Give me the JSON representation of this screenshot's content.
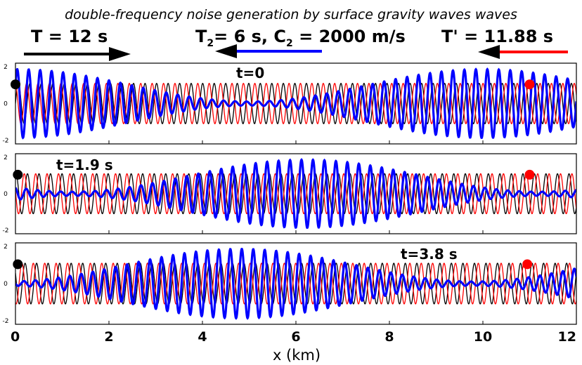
{
  "title": "double-frequency noise generation by surface gravity waves waves",
  "header": {
    "wave1_label": "T = 12 s",
    "wave2_label_T": "T",
    "wave2_label_T_sub": "2",
    "wave2_label_mid": "= 6 s, C",
    "wave2_label_C_sub": "2",
    "wave2_label_end": " = 2000 m/s",
    "wave3_label": "T' = 11.88 s"
  },
  "colors": {
    "wave1": "#000000",
    "wave2": "#0000ff",
    "wave3": "#ff0000",
    "background": "#ffffff"
  },
  "chart_data": {
    "type": "line",
    "xlabel": "x (km)",
    "xlim": [
      0,
      12
    ],
    "x_ticks": [
      "0",
      "2",
      "4",
      "6",
      "8",
      "10",
      "12"
    ],
    "ylim": [
      -2,
      2
    ],
    "y_ticks": [
      "2",
      "0",
      "-2"
    ],
    "series": [
      {
        "name": "T = 12 s",
        "color": "#000000",
        "direction": "right",
        "wavelength_km": 0.2465,
        "amplitude": 1
      },
      {
        "name": "T' = 11.88 s",
        "color": "#ff0000",
        "direction": "left",
        "wavelength_km": 0.2441,
        "amplitude": 1
      },
      {
        "name": "T2 = 6 s, C2 = 2000 m/s",
        "color": "#0000ff",
        "direction": "left",
        "wavelength_km": 0.2453,
        "envelope_period_km": 10.0,
        "envelope_min": 0.1,
        "envelope_max": 1.7
      }
    ],
    "panels": [
      {
        "label": "t=0",
        "envelope_min_x_km": 5.0,
        "black_marker_x_km": 0.0,
        "red_marker_x_km": 11.0
      },
      {
        "label": "t=1.9 s",
        "envelope_min_x_km": 1.2,
        "black_marker_x_km": 0.05,
        "red_marker_x_km": 11.0
      },
      {
        "label": "t=3.8 s",
        "envelope_min_x_km": 9.8,
        "black_marker_x_km": 0.05,
        "red_marker_x_km": 10.95
      }
    ]
  }
}
